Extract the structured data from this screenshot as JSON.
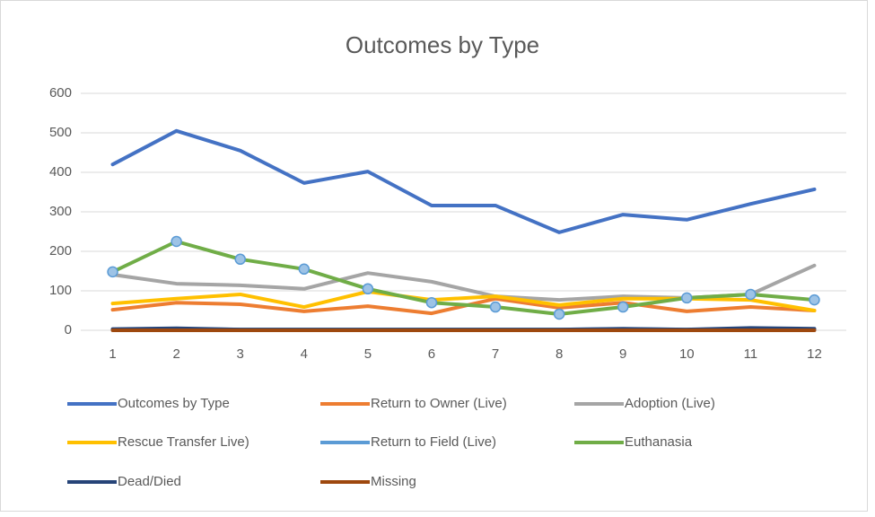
{
  "chart_data": {
    "type": "line",
    "title": "Outcomes by Type",
    "categories": [
      "1",
      "2",
      "3",
      "4",
      "5",
      "6",
      "7",
      "8",
      "9",
      "10",
      "11",
      "12"
    ],
    "ylim": [
      0,
      600
    ],
    "yticks": [
      0,
      100,
      200,
      300,
      400,
      500,
      600
    ],
    "grid": true,
    "series": [
      {
        "name": "Outcomes by Type",
        "color": "#4472c4",
        "values": [
          420,
          505,
          455,
          373,
          402,
          316,
          316,
          248,
          293,
          280,
          320,
          357
        ]
      },
      {
        "name": "Return to Owner (Live)",
        "color": "#ed7d31",
        "values": [
          52,
          70,
          66,
          48,
          61,
          43,
          80,
          57,
          70,
          48,
          59,
          50
        ]
      },
      {
        "name": "Adoption (Live)",
        "color": "#a5a5a5",
        "values": [
          141,
          118,
          114,
          105,
          145,
          123,
          86,
          77,
          86,
          82,
          91,
          164
        ]
      },
      {
        "name": "Rescue Transfer Live)",
        "color": "#ffc000",
        "values": [
          68,
          80,
          91,
          59,
          98,
          77,
          86,
          64,
          80,
          80,
          77,
          50
        ]
      },
      {
        "name": "Return to Field (Live)",
        "color": "#5b9bd5",
        "values": [
          2,
          3,
          2,
          2,
          2,
          2,
          2,
          2,
          3,
          2,
          3,
          2
        ]
      },
      {
        "name": "Euthanasia",
        "color": "#70ad47",
        "marker_color": "#9dc3e6",
        "values": [
          148,
          225,
          180,
          155,
          105,
          70,
          59,
          41,
          59,
          82,
          91,
          77
        ]
      },
      {
        "name": "Dead/Died",
        "color": "#264478",
        "values": [
          3,
          5,
          2,
          2,
          2,
          2,
          2,
          2,
          4,
          2,
          6,
          4
        ]
      },
      {
        "name": "Missing",
        "color": "#9e480e",
        "values": [
          0,
          0,
          0,
          0,
          0,
          0,
          0,
          0,
          0,
          0,
          0,
          0
        ]
      }
    ]
  }
}
